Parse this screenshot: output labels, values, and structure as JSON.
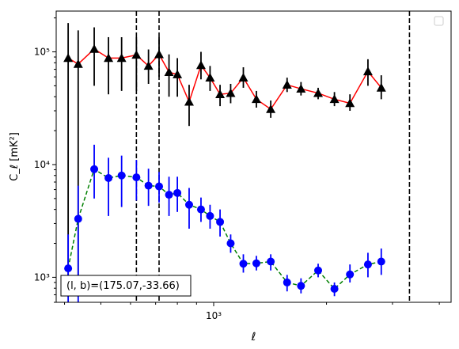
{
  "chart_data": {
    "type": "scatter",
    "title": "",
    "xlabel": "ℓ",
    "ylabel": "C_ℓ [mK²]",
    "xscale": "log",
    "yscale": "log",
    "xlim": [
      380,
      4300
    ],
    "ylim": [
      600,
      230000
    ],
    "grid": false,
    "legend": "top-right (empty)",
    "x_ticks": [
      {
        "value": 1000,
        "label": "10³"
      }
    ],
    "y_ticks": [
      {
        "value": 1000,
        "label": "10³"
      },
      {
        "value": 10000,
        "label": "10⁴"
      },
      {
        "value": 100000,
        "label": "10⁵"
      }
    ],
    "annotation": "(l, b)=(175.07,-33.66)",
    "vlines": [
      622,
      715,
      3330
    ],
    "series": [
      {
        "marker": "triangle",
        "marker_color": "#000000",
        "line_color": "#ff0000",
        "line_style": "solid",
        "points": [
          {
            "x": 409,
            "y": 88000,
            "lo": 700,
            "hi": 180000
          },
          {
            "x": 435,
            "y": 78000,
            "lo": 700,
            "hi": 155000
          },
          {
            "x": 480,
            "y": 106000,
            "lo": 50000,
            "hi": 165000
          },
          {
            "x": 524,
            "y": 88000,
            "lo": 42000,
            "hi": 135000
          },
          {
            "x": 568,
            "y": 88000,
            "lo": 45000,
            "hi": 135000
          },
          {
            "x": 622,
            "y": 94000,
            "lo": 45000,
            "hi": 135000
          },
          {
            "x": 670,
            "y": 75000,
            "lo": 52000,
            "hi": 105000
          },
          {
            "x": 715,
            "y": 95000,
            "lo": 60000,
            "hi": 135000
          },
          {
            "x": 760,
            "y": 66000,
            "lo": 40000,
            "hi": 95000
          },
          {
            "x": 800,
            "y": 63000,
            "lo": 40000,
            "hi": 88000
          },
          {
            "x": 860,
            "y": 36000,
            "lo": 22000,
            "hi": 51000
          },
          {
            "x": 925,
            "y": 76000,
            "lo": 57000,
            "hi": 100000
          },
          {
            "x": 978,
            "y": 59000,
            "lo": 45000,
            "hi": 75000
          },
          {
            "x": 1040,
            "y": 42000,
            "lo": 33000,
            "hi": 51000
          },
          {
            "x": 1110,
            "y": 43000,
            "lo": 35000,
            "hi": 52000
          },
          {
            "x": 1200,
            "y": 59000,
            "lo": 48000,
            "hi": 73000
          },
          {
            "x": 1300,
            "y": 38000,
            "lo": 32000,
            "hi": 45000
          },
          {
            "x": 1420,
            "y": 31000,
            "lo": 26000,
            "hi": 37000
          },
          {
            "x": 1570,
            "y": 51000,
            "lo": 44000,
            "hi": 59000
          },
          {
            "x": 1710,
            "y": 47000,
            "lo": 41000,
            "hi": 54000
          },
          {
            "x": 1900,
            "y": 43000,
            "lo": 38000,
            "hi": 48000
          },
          {
            "x": 2100,
            "y": 38000,
            "lo": 33000,
            "hi": 44000
          },
          {
            "x": 2310,
            "y": 35000,
            "lo": 30000,
            "hi": 42000
          },
          {
            "x": 2580,
            "y": 67000,
            "lo": 50000,
            "hi": 86000
          },
          {
            "x": 2800,
            "y": 48000,
            "lo": 38000,
            "hi": 62000
          }
        ]
      },
      {
        "marker": "circle",
        "marker_color": "#0000ff",
        "line_color": "#008000",
        "line_style": "dashed",
        "points": [
          {
            "x": 409,
            "y": 1200,
            "lo": 600,
            "hi": 2400
          },
          {
            "x": 435,
            "y": 3300,
            "lo": 600,
            "hi": 6500
          },
          {
            "x": 480,
            "y": 9100,
            "lo": 5000,
            "hi": 15000
          },
          {
            "x": 524,
            "y": 7600,
            "lo": 3500,
            "hi": 11500
          },
          {
            "x": 568,
            "y": 8000,
            "lo": 4200,
            "hi": 12000
          },
          {
            "x": 622,
            "y": 7700,
            "lo": 4800,
            "hi": 11000
          },
          {
            "x": 670,
            "y": 6500,
            "lo": 4300,
            "hi": 9200
          },
          {
            "x": 715,
            "y": 6400,
            "lo": 4600,
            "hi": 8600
          },
          {
            "x": 760,
            "y": 5400,
            "lo": 3500,
            "hi": 7800
          },
          {
            "x": 800,
            "y": 5600,
            "lo": 3800,
            "hi": 7800
          },
          {
            "x": 860,
            "y": 4400,
            "lo": 2700,
            "hi": 6200
          },
          {
            "x": 925,
            "y": 4000,
            "lo": 3100,
            "hi": 5100
          },
          {
            "x": 978,
            "y": 3500,
            "lo": 2700,
            "hi": 4400
          },
          {
            "x": 1040,
            "y": 3100,
            "lo": 2300,
            "hi": 4000
          },
          {
            "x": 1110,
            "y": 2000,
            "lo": 1650,
            "hi": 2400
          },
          {
            "x": 1200,
            "y": 1320,
            "lo": 1100,
            "hi": 1600
          },
          {
            "x": 1300,
            "y": 1330,
            "lo": 1150,
            "hi": 1550
          },
          {
            "x": 1420,
            "y": 1380,
            "lo": 1150,
            "hi": 1600
          },
          {
            "x": 1570,
            "y": 900,
            "lo": 750,
            "hi": 1050
          },
          {
            "x": 1710,
            "y": 840,
            "lo": 720,
            "hi": 980
          },
          {
            "x": 1900,
            "y": 1150,
            "lo": 1000,
            "hi": 1320
          },
          {
            "x": 2100,
            "y": 790,
            "lo": 680,
            "hi": 900
          },
          {
            "x": 2310,
            "y": 1060,
            "lo": 900,
            "hi": 1300
          },
          {
            "x": 2580,
            "y": 1300,
            "lo": 1000,
            "hi": 1650
          },
          {
            "x": 2800,
            "y": 1380,
            "lo": 1050,
            "hi": 1800
          }
        ]
      }
    ]
  }
}
